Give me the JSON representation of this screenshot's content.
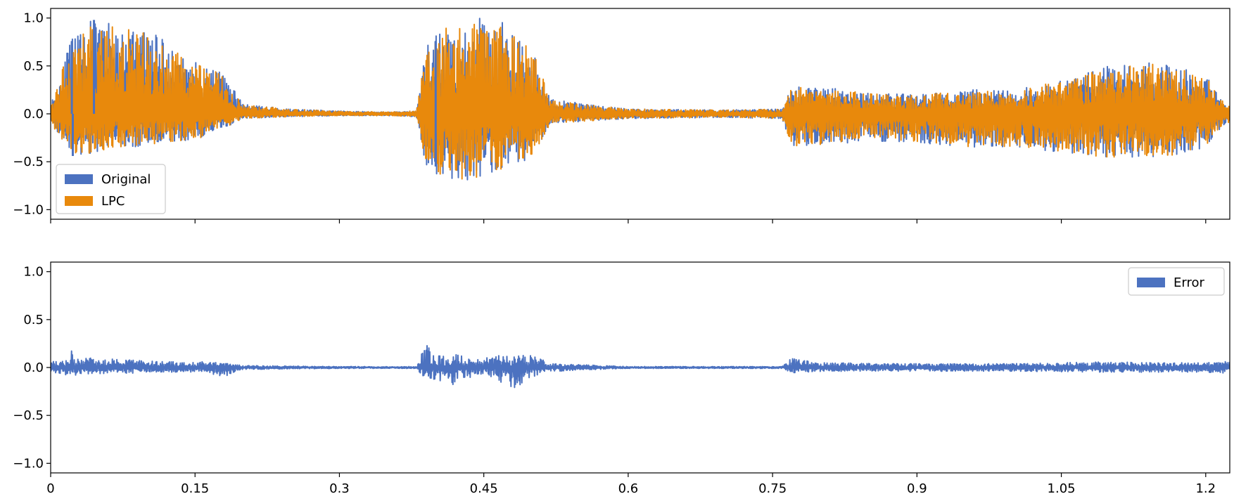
{
  "colors": {
    "original": "#4C72C0",
    "lpc": "#E8890C",
    "error": "#4C72C0"
  },
  "chart_data": [
    {
      "type": "line",
      "name": "signal-comparison",
      "ylim": [
        -1.1,
        1.1
      ],
      "xlim": [
        0,
        1.225
      ],
      "ytick_labels": [
        "1.0",
        "0.5",
        "0.0",
        "−0.5",
        "−1.0"
      ],
      "ytick_values": [
        1.0,
        0.5,
        0.0,
        -0.5,
        -1.0
      ],
      "xtick_values": [
        0,
        0.15,
        0.3,
        0.45,
        0.6,
        0.75,
        0.9,
        1.05,
        1.2
      ],
      "legend_position": "lower-left",
      "legend": [
        "Original",
        "LPC"
      ],
      "series": [
        {
          "name": "Original",
          "color": "#4C72C0"
        },
        {
          "name": "LPC",
          "color": "#E8890C"
        }
      ],
      "envelope": {
        "x": [
          0.0,
          0.02,
          0.04,
          0.06,
          0.08,
          0.1,
          0.12,
          0.14,
          0.16,
          0.18,
          0.2,
          0.25,
          0.3,
          0.35,
          0.38,
          0.39,
          0.41,
          0.43,
          0.45,
          0.47,
          0.5,
          0.52,
          0.6,
          0.7,
          0.76,
          0.77,
          0.8,
          0.85,
          0.9,
          0.95,
          1.0,
          1.05,
          1.1,
          1.15,
          1.2,
          1.22
        ],
        "positive": [
          0.1,
          0.75,
          0.97,
          0.95,
          0.93,
          0.9,
          0.75,
          0.62,
          0.5,
          0.42,
          0.1,
          0.05,
          0.03,
          0.02,
          0.03,
          0.7,
          0.92,
          1.0,
          1.0,
          0.95,
          0.7,
          0.15,
          0.05,
          0.04,
          0.05,
          0.28,
          0.28,
          0.22,
          0.2,
          0.25,
          0.25,
          0.35,
          0.5,
          0.55,
          0.4,
          0.1
        ],
        "negative": [
          -0.1,
          -0.42,
          -0.42,
          -0.38,
          -0.35,
          -0.33,
          -0.3,
          -0.28,
          -0.25,
          -0.15,
          -0.05,
          -0.03,
          -0.02,
          -0.02,
          -0.03,
          -0.55,
          -0.7,
          -0.7,
          -0.68,
          -0.6,
          -0.45,
          -0.1,
          -0.05,
          -0.04,
          -0.05,
          -0.35,
          -0.33,
          -0.28,
          -0.3,
          -0.35,
          -0.35,
          -0.4,
          -0.47,
          -0.48,
          -0.35,
          -0.1
        ]
      },
      "original_peaks": [
        {
          "x": 0.022,
          "y": 0.76
        },
        {
          "x": 0.023,
          "y": -0.44
        },
        {
          "x": 0.045,
          "y": 0.98
        },
        {
          "x": 0.4,
          "y": 0.75
        },
        {
          "x": 0.4,
          "y": -0.55
        }
      ]
    },
    {
      "type": "line",
      "name": "error",
      "ylim": [
        -1.1,
        1.1
      ],
      "xlim": [
        0,
        1.225
      ],
      "ytick_labels": [
        "1.0",
        "0.5",
        "0.0",
        "−0.5",
        "−1.0"
      ],
      "ytick_values": [
        1.0,
        0.5,
        0.0,
        -0.5,
        -1.0
      ],
      "xtick_values": [
        0,
        0.15,
        0.3,
        0.45,
        0.6,
        0.75,
        0.9,
        1.05,
        1.2
      ],
      "xtick_labels": [
        "0",
        "0.15",
        "0.3",
        "0.45",
        "0.6",
        "0.75",
        "0.9",
        "1.05",
        "1.2"
      ],
      "legend_position": "upper-right",
      "legend": [
        "Error"
      ],
      "series": [
        {
          "name": "Error",
          "color": "#4C72C0"
        }
      ],
      "envelope": {
        "x": [
          0.0,
          0.02,
          0.022,
          0.024,
          0.04,
          0.08,
          0.12,
          0.16,
          0.18,
          0.2,
          0.3,
          0.38,
          0.39,
          0.4,
          0.42,
          0.44,
          0.46,
          0.48,
          0.5,
          0.52,
          0.6,
          0.76,
          0.77,
          0.8,
          0.9,
          1.0,
          1.1,
          1.15,
          1.2,
          1.22
        ],
        "positive": [
          0.06,
          0.08,
          0.34,
          0.08,
          0.1,
          0.08,
          0.06,
          0.06,
          0.05,
          0.02,
          0.01,
          0.01,
          0.27,
          0.12,
          0.16,
          0.08,
          0.12,
          0.14,
          0.13,
          0.04,
          0.01,
          0.01,
          0.1,
          0.05,
          0.04,
          0.04,
          0.06,
          0.05,
          0.05,
          0.06
        ],
        "negative": [
          -0.06,
          -0.08,
          -0.17,
          -0.08,
          -0.07,
          -0.06,
          -0.05,
          -0.05,
          -0.1,
          -0.02,
          -0.01,
          -0.01,
          -0.13,
          -0.12,
          -0.2,
          -0.08,
          -0.1,
          -0.24,
          -0.1,
          -0.04,
          -0.01,
          -0.01,
          -0.06,
          -0.04,
          -0.04,
          -0.04,
          -0.05,
          -0.05,
          -0.05,
          -0.06
        ]
      }
    }
  ]
}
